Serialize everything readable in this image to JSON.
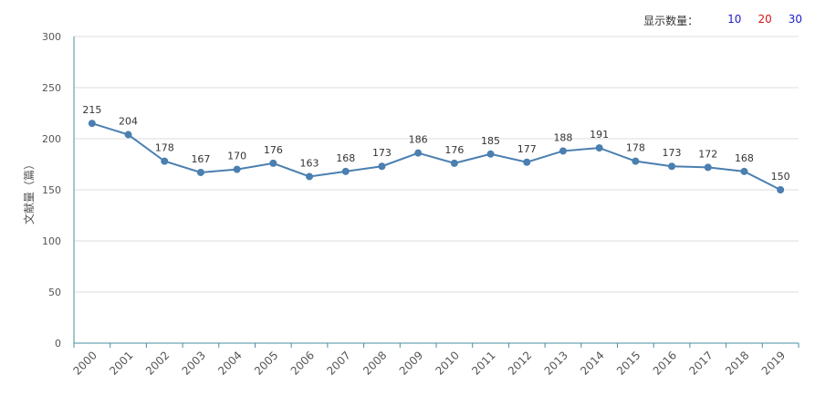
{
  "display_count": {
    "label": "显示数量：",
    "options": [
      {
        "value": "10",
        "color": "#1c1cc8"
      },
      {
        "value": "20",
        "color": "#d61515"
      },
      {
        "value": "30",
        "color": "#1c1cc8"
      }
    ]
  },
  "colors": {
    "line": "#4a7fb0",
    "grid": "#dedede",
    "axis": "#4a8fa0",
    "tick_text": "#555555",
    "label_text": "#333333"
  },
  "chart_data": {
    "type": "line",
    "title": "",
    "xlabel": "",
    "ylabel": "文献量（篇）",
    "ylim": [
      0,
      300
    ],
    "yticks": [
      0,
      50,
      100,
      150,
      200,
      250,
      300
    ],
    "grid": true,
    "categories": [
      "2000",
      "2001",
      "2002",
      "2003",
      "2004",
      "2005",
      "2006",
      "2007",
      "2008",
      "2009",
      "2010",
      "2011",
      "2012",
      "2013",
      "2014",
      "2015",
      "2016",
      "2017",
      "2018",
      "2019"
    ],
    "values": [
      215,
      204,
      178,
      167,
      170,
      176,
      163,
      168,
      173,
      186,
      176,
      185,
      177,
      188,
      191,
      178,
      173,
      172,
      168,
      150
    ]
  }
}
